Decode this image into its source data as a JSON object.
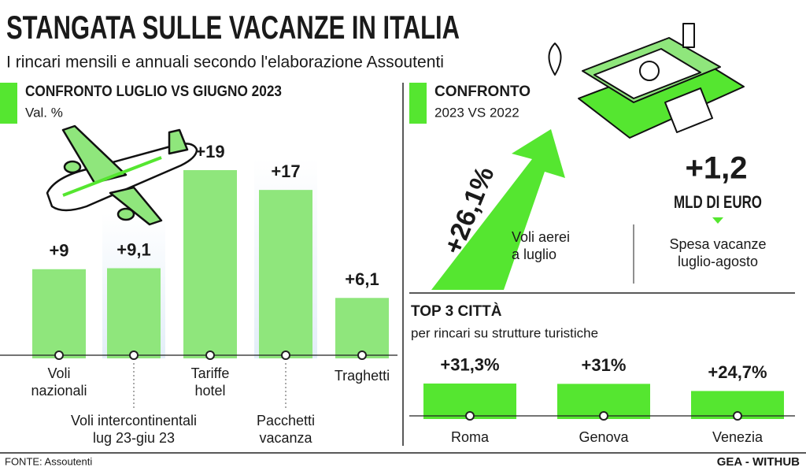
{
  "title": "STANGATA SULLE VACANZE IN ITALIA",
  "subtitle": "I rincari mensili e annuali secondo l'elaborazione Assoutenti",
  "chart_data": [
    {
      "type": "bar",
      "title": "CONFRONTO LUGLIO VS GIUGNO 2023",
      "subtitle": "Val. %",
      "categories": [
        "Voli\nnazionali",
        "Voli intercontinentali\nlug 23-giu 23",
        "Tariffe\nhotel",
        "Pacchetti\nvacanza",
        "Traghetti"
      ],
      "values": [
        9,
        9.1,
        19,
        17,
        6.1
      ],
      "value_labels": [
        "+9",
        "+9,1",
        "+19",
        "+17",
        "+6,1"
      ],
      "color": "#8fe67c"
    },
    {
      "type": "bar",
      "title": "TOP 3 CITTÀ",
      "subtitle": "per rincari su strutture turistiche",
      "categories": [
        "Roma",
        "Genova",
        "Venezia"
      ],
      "values": [
        31.3,
        31,
        24.7
      ],
      "value_labels": [
        "+31,3%",
        "+31%",
        "+24,7%"
      ],
      "color": "#55e630"
    }
  ],
  "comparison": {
    "title": "CONFRONTO",
    "subtitle": "2023 VS 2022",
    "flights": {
      "value_label": "+26,1%",
      "label": "Voli aerei\na luglio"
    },
    "spending": {
      "value_label": "+1,2",
      "unit": "MLD DI EURO",
      "label": "Spesa vacanze\nluglio-agosto"
    }
  },
  "source": "FONTE: Assoutenti",
  "credit": "GEA - WITHUB"
}
